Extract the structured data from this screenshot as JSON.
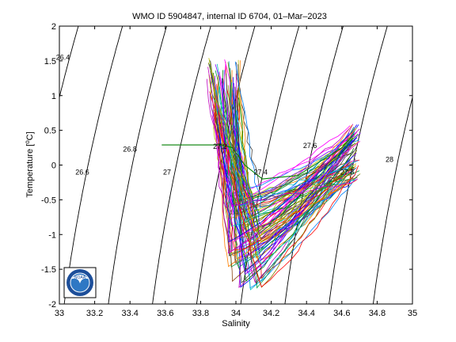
{
  "chart_data": {
    "type": "line",
    "title": "WMO ID 5904847, internal ID 6704, 01–Mar–2023",
    "xlabel": "Salinity",
    "ylabel_main": "Temperature [",
    "ylabel_sup": "o",
    "ylabel_end": "C]",
    "xlim": [
      33,
      35
    ],
    "ylim": [
      -2,
      2
    ],
    "x_ticks": [
      "33",
      "33.2",
      "33.4",
      "33.6",
      "33.8",
      "34",
      "34.2",
      "34.4",
      "34.6",
      "34.8",
      "35"
    ],
    "y_ticks": [
      "-2",
      "-1.5",
      "-1",
      "-0.5",
      "0",
      "0.5",
      "1",
      "1.5",
      "2"
    ],
    "grid": false,
    "legend": "none",
    "isopycnals": {
      "values": [
        26.4,
        26.6,
        26.8,
        27.0,
        27.2,
        27.4,
        27.6,
        27.8,
        28.0
      ],
      "labels": [
        {
          "text": "26.4",
          "s": 33.02,
          "t": 1.55
        },
        {
          "text": "26.6",
          "s": 33.13,
          "t": -0.1
        },
        {
          "text": "26.8",
          "s": 33.4,
          "t": 0.23
        },
        {
          "text": "27",
          "s": 33.61,
          "t": -0.1
        },
        {
          "text": "27.2",
          "s": 33.91,
          "t": 0.27
        },
        {
          "text": "27.4",
          "s": 34.14,
          "t": -0.1
        },
        {
          "text": "27.6",
          "s": 34.42,
          "t": 0.28
        },
        {
          "text": "27.8",
          "s": 34.63,
          "t": -0.1
        },
        {
          "text": "28",
          "s": 34.87,
          "t": 0.08
        }
      ]
    },
    "series": [
      {
        "color": "#007f00",
        "points": [
          [
            33.58,
            0.29
          ],
          [
            33.92,
            0.29
          ],
          [
            33.98,
            0.25
          ],
          [
            34.05,
            0.0
          ],
          [
            34.15,
            -0.2
          ],
          [
            34.35,
            -0.15
          ],
          [
            34.6,
            0.25
          ],
          [
            34.67,
            0.45
          ]
        ]
      }
    ],
    "profile_bundle": {
      "count": 90,
      "shallow_s": [
        33.84,
        34.02
      ],
      "shallow_t": [
        0.7,
        1.55
      ],
      "mid_s": [
        33.95,
        34.15
      ],
      "mid_t": [
        -1.8,
        -0.4
      ],
      "deep_s": [
        34.64,
        34.7
      ],
      "deep_t": [
        -0.25,
        0.6
      ],
      "colors": [
        "#0000ff",
        "#007f00",
        "#ff0000",
        "#00bfbf",
        "#bf00bf",
        "#bfbf00",
        "#404040",
        "#8b4513",
        "#ff7f00",
        "#7f00ff",
        "#0080ff",
        "#808000",
        "#ff00ff",
        "#00a040"
      ]
    }
  },
  "logo": {
    "text": "NOAA",
    "colors": {
      "outer": "#1d4f9a",
      "inner": "#2f78c4",
      "bird": "#ffffff",
      "ring": "#ffffff"
    }
  }
}
